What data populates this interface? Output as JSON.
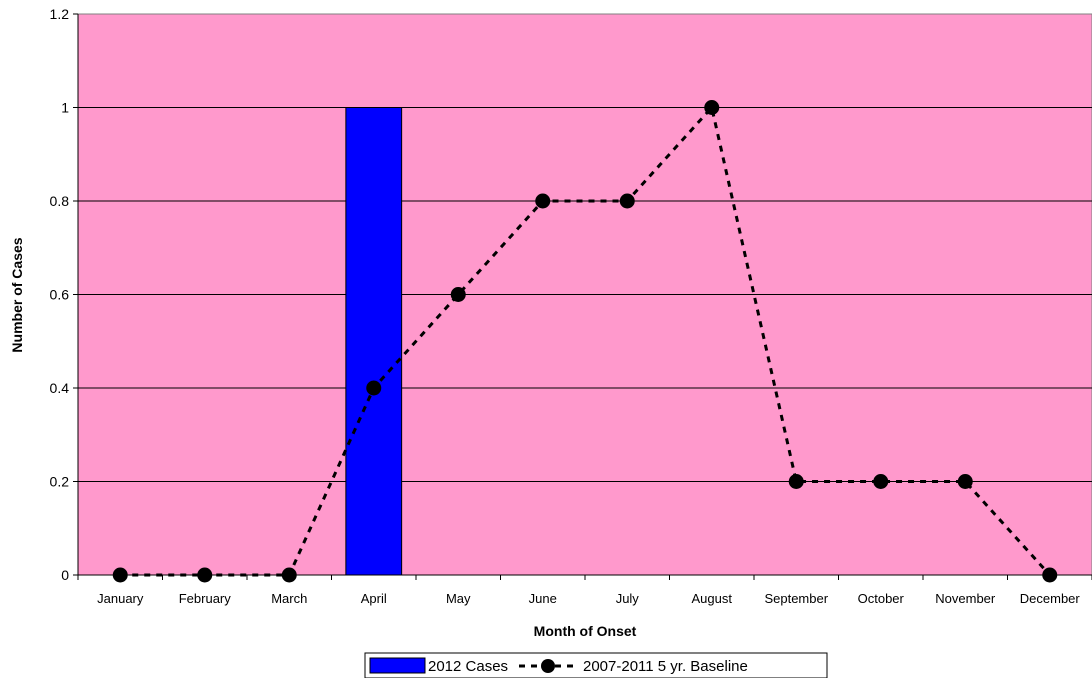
{
  "chart_data": {
    "type": "bar",
    "categories": [
      "January",
      "February",
      "March",
      "April",
      "May",
      "June",
      "July",
      "August",
      "September",
      "October",
      "November",
      "December"
    ],
    "series": [
      {
        "name": "2012 Cases",
        "type": "bar",
        "values": [
          0,
          0,
          0,
          1,
          0,
          0,
          0,
          0,
          0,
          0,
          0,
          0
        ],
        "color": "#0000FF"
      },
      {
        "name": "2007-2011 5 yr. Baseline",
        "type": "line",
        "style": "dashed",
        "marker": "circle",
        "values": [
          0,
          0,
          0,
          0.4,
          0.6,
          0.8,
          0.8,
          1.0,
          0.2,
          0.2,
          0.2,
          0
        ],
        "color": "#000000"
      }
    ],
    "xlabel": "Month of Onset",
    "ylabel": "Number of Cases",
    "ylim": [
      0,
      1.2
    ],
    "yticks": [
      "0",
      "0.2",
      "0.4",
      "0.6",
      "0.8",
      "1",
      "1.2"
    ],
    "grid": true,
    "legend": "bottom",
    "plot_background": "#FF99CC"
  }
}
